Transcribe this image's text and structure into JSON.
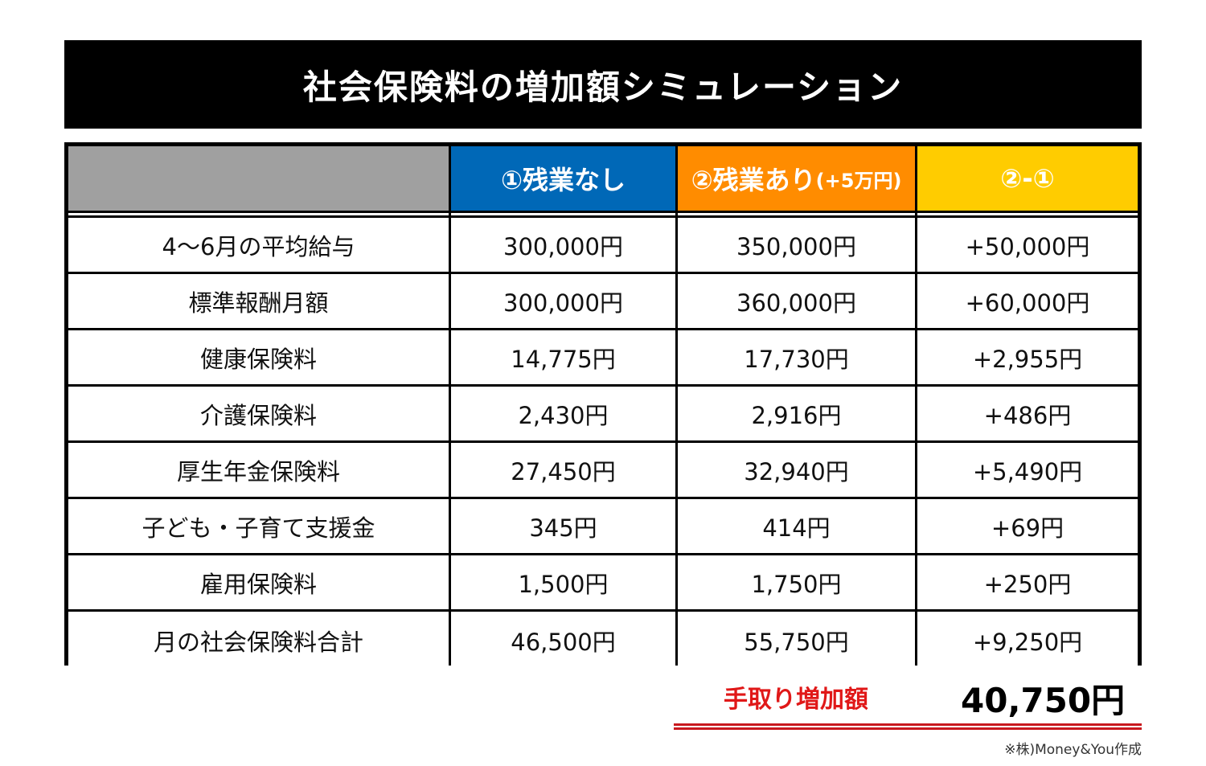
{
  "title": "社会保険料の増加額シミュレーション",
  "table": {
    "headers": [
      "",
      "①残業なし",
      "②残業あり",
      "②-①"
    ],
    "header_suffix": "(+5万円)",
    "header_colors": [
      "#a0a0a0",
      "#0068b7",
      "#ff8c00",
      "#ffcc00"
    ],
    "rows": [
      [
        "4〜6月の平均給与",
        "300,000円",
        "350,000円",
        "+50,000円"
      ],
      [
        "標準報酬月額",
        "300,000円",
        "360,000円",
        "+60,000円"
      ],
      [
        "健康保険料",
        "14,775円",
        "17,730円",
        "+2,955円"
      ],
      [
        "介護保険料",
        "2,430円",
        "2,916円",
        "+486円"
      ],
      [
        "厚生年金保険料",
        "27,450円",
        "32,940円",
        "+5,490円"
      ],
      [
        "子ども・子育て支援金",
        "345円",
        "414円",
        "+69円"
      ],
      [
        "雇用保険料",
        "1,500円",
        "1,750円",
        "+250円"
      ],
      [
        "月の社会保険料合計",
        "46,500円",
        "55,750円",
        "+9,250円"
      ]
    ]
  },
  "summary": {
    "label": "手取り増加額",
    "value": "40,750円"
  },
  "credit": "※株)Money&You作成"
}
